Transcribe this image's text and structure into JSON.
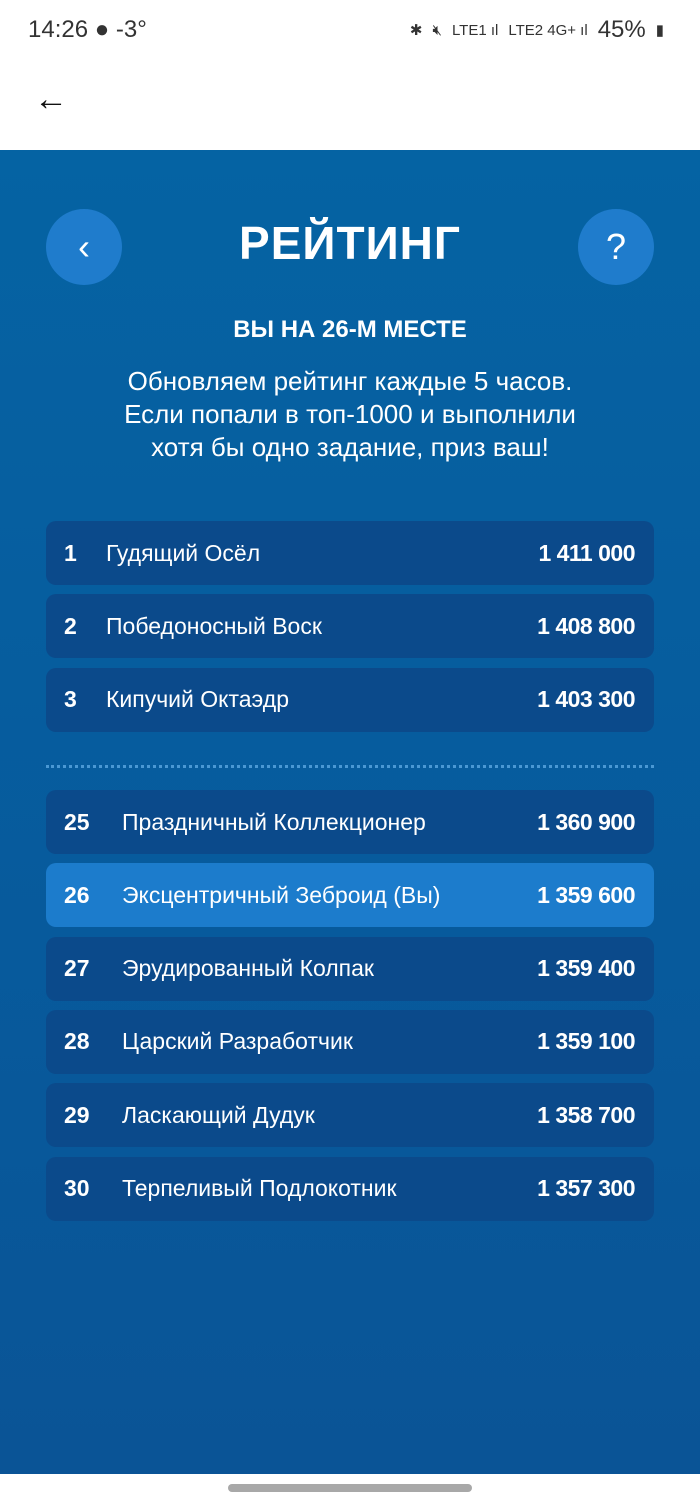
{
  "status": {
    "time": "14:26",
    "weather": "-3°",
    "icons": [
      "bluetooth-icon",
      "mute-icon",
      "volte-lte1",
      "signal-icon",
      "volte-lte2",
      "4g-plus",
      "signal-icon"
    ],
    "battery": "45%"
  },
  "header": {
    "title": "РЕЙТИНГ",
    "prev": "‹",
    "help": "?"
  },
  "position": "ВЫ НА 26-М МЕСТЕ",
  "info_lines": [
    "Обновляем рейтинг каждые 5 часов.",
    "Если попали в топ-1000 и выполнили",
    "хотя бы одно задание, приз ваш!"
  ],
  "top": [
    {
      "rank": "1",
      "name": "Гудящий Осёл",
      "score": "1 411 000"
    },
    {
      "rank": "2",
      "name": "Победоносный Воск",
      "score": "1 408 800"
    },
    {
      "rank": "3",
      "name": "Кипучий Октаэдр",
      "score": "1 403 300"
    }
  ],
  "around": [
    {
      "rank": "25",
      "name": "Праздничный Коллекционер",
      "score": "1 360 900"
    },
    {
      "rank": "26",
      "name": "Эксцентричный Зеброид (Вы)",
      "score": "1 359 600",
      "current": true
    },
    {
      "rank": "27",
      "name": "Эрудированный Колпак",
      "score": "1 359 400"
    },
    {
      "rank": "28",
      "name": "Царский Разработчик",
      "score": "1 359 100"
    },
    {
      "rank": "29",
      "name": "Ласкающий Дудук",
      "score": "1 358 700"
    },
    {
      "rank": "30",
      "name": "Терпеливый Подлокотник",
      "score": "1 357 300"
    }
  ],
  "colors": {
    "bg": "#0563a3",
    "row": "#0b4a8b",
    "highlight": "#1c7ccc"
  }
}
